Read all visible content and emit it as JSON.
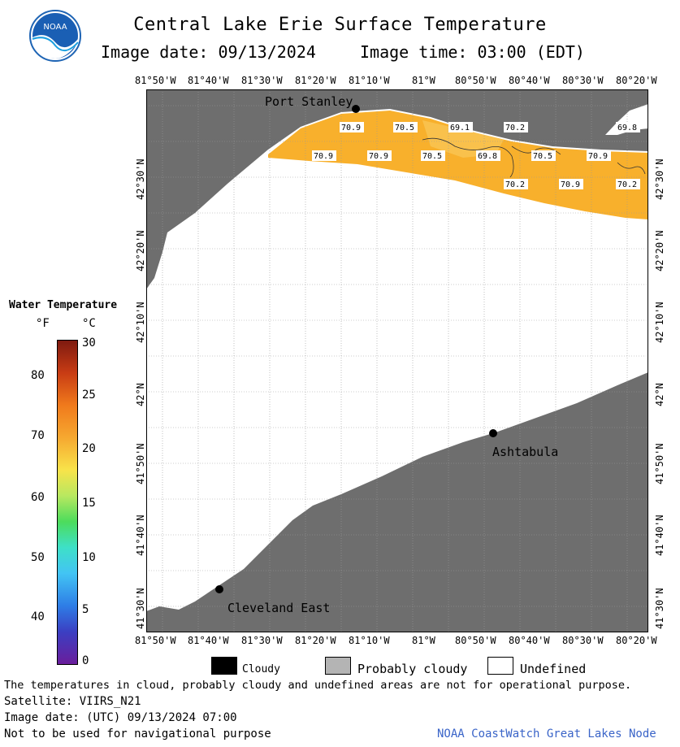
{
  "header": {
    "title": "Central Lake Erie Surface Temperature",
    "image_date": "Image date: 09/13/2024",
    "image_time": "Image time: 03:00 (EDT)"
  },
  "logo": {
    "text": "NOAA"
  },
  "axes": {
    "lon_labels": [
      "81°50'W",
      "81°40'W",
      "81°30'W",
      "81°20'W",
      "81°10'W",
      "81°W",
      "80°50'W",
      "80°40'W",
      "80°30'W",
      "80°20'W"
    ],
    "lat_labels": [
      "42°30'N",
      "42°20'N",
      "42°10'N",
      "42°N",
      "41°50'N",
      "41°40'N",
      "41°30'N"
    ]
  },
  "places": [
    {
      "name": "Port Stanley"
    },
    {
      "name": "Ashtabula"
    },
    {
      "name": "Cleveland East"
    }
  ],
  "temps": [
    "70.9",
    "70.5",
    "69.1",
    "70.2",
    "69.8",
    "70.9",
    "70.9",
    "70.5",
    "69.8",
    "70.5",
    "70.9",
    "70.2",
    "70.9",
    "70.2"
  ],
  "legend": {
    "title": "Water Temperature",
    "unit_f": "°F",
    "unit_c": "°C",
    "f_ticks": [
      "80",
      "70",
      "60",
      "50",
      "40"
    ],
    "c_ticks": [
      "30",
      "25",
      "20",
      "15",
      "10",
      "5",
      "0"
    ],
    "cloud_keys": [
      {
        "label": "Cloudy",
        "color": "#000000"
      },
      {
        "label": "Probably cloudy",
        "color": "#b4b4b4"
      },
      {
        "label": "Undefined",
        "color": "#ffffff"
      }
    ]
  },
  "footer": {
    "disclaimer": "The temperatures in cloud, probably cloudy and undefined areas are not for operational purpose.",
    "satellite": "Satellite: VIIRS_N21",
    "utc_date": "Image date: (UTC) 09/13/2024  07:00",
    "nav_note": "Not to be used for navigational purpose",
    "credit": "NOAA CoastWatch Great Lakes Node"
  },
  "colors": {
    "land": "#6e6e6e",
    "water_warm": "#f8b02c"
  }
}
